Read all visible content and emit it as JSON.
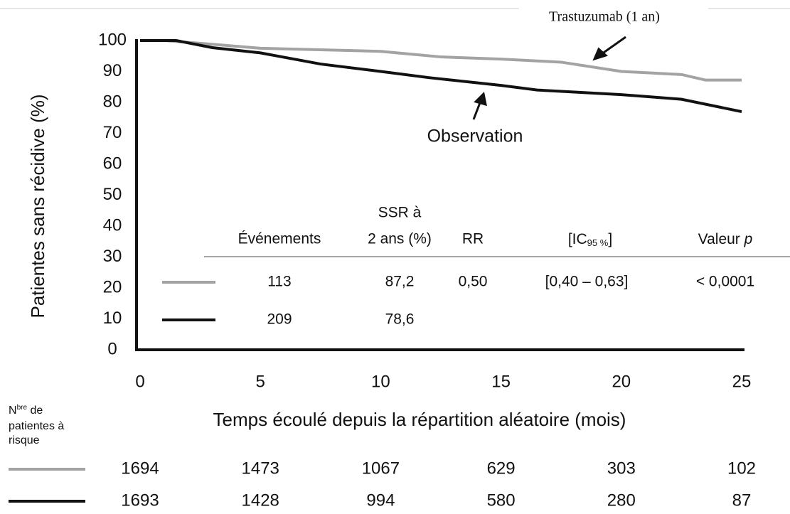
{
  "chart_data": {
    "type": "line",
    "ylabel": "Patientes sans récidive (%)",
    "xlabel": "Temps écoulé depuis la répartition aléatoire (mois)",
    "xlim": [
      0,
      25
    ],
    "xticks": [
      0,
      5,
      10,
      15,
      20,
      25
    ],
    "ylim": [
      0,
      100
    ],
    "yticks": [
      0,
      10,
      20,
      30,
      40,
      50,
      60,
      70,
      80,
      90,
      100
    ],
    "series": [
      {
        "name": "Trastuzumab (1 an)",
        "color": "#a3a3a3",
        "x": [
          0,
          1,
          3,
          5,
          10,
          12.5,
          15,
          17.5,
          20,
          22.5,
          23.5,
          25
        ],
        "values": [
          100,
          100,
          98.8,
          97.5,
          96.5,
          94.7,
          94,
          93,
          90,
          89,
          87.2,
          87.2
        ],
        "table": [
          "113",
          "87,2",
          "0,50",
          "[0,40 – 0,63]",
          "< 0,0001"
        ],
        "at_risk": [
          1694,
          1473,
          1067,
          629,
          303,
          102
        ]
      },
      {
        "name": "Observation",
        "color": "#111111",
        "x": [
          0,
          1.5,
          3,
          5,
          7.5,
          10,
          12,
          15,
          16.5,
          20,
          22.5,
          25
        ],
        "values": [
          100,
          100,
          97.7,
          96,
          92.4,
          90,
          88,
          85.5,
          84,
          82.5,
          81,
          77
        ],
        "table": [
          "209",
          "78,6"
        ],
        "at_risk": [
          1693,
          1428,
          994,
          580,
          280,
          87
        ]
      }
    ],
    "table_headers": {
      "events": "Événements",
      "ssr": [
        "SSR à",
        "2 ans (%)"
      ],
      "rr": "RR",
      "ci": [
        "[IC",
        "95 %",
        "]"
      ],
      "p": [
        "Valeur",
        "p"
      ]
    },
    "at_risk_label": {
      "prefix": "N",
      "sup": "bre",
      "lines": [
        " de",
        "patientes à",
        "risque"
      ]
    }
  }
}
